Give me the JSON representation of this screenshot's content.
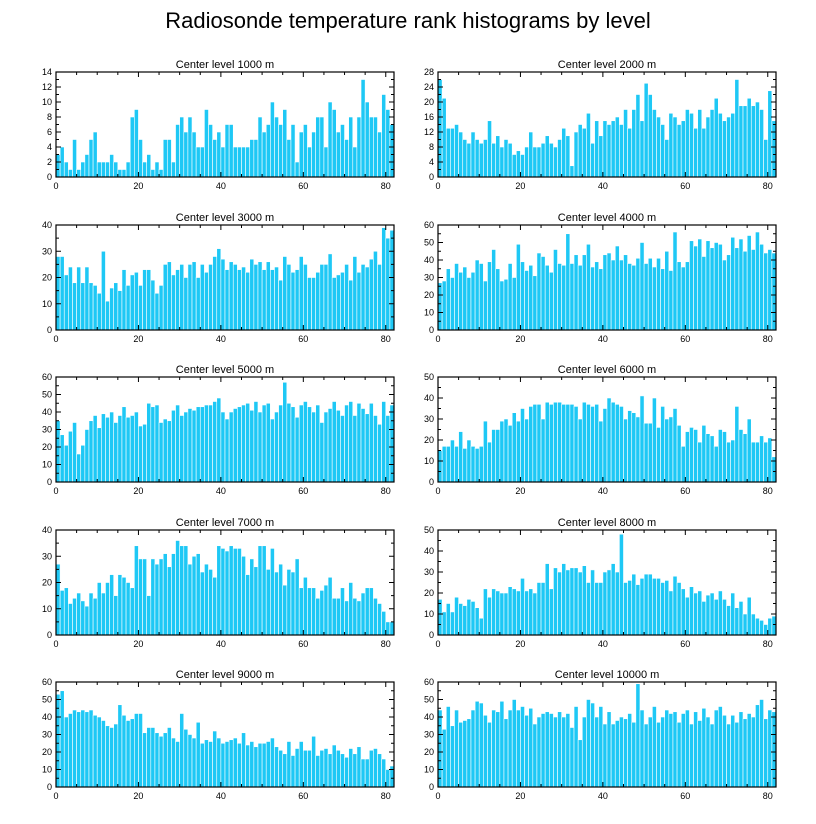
{
  "title": "Radiosonde temperature rank histograms by level",
  "colors": {
    "bar": "#1EC8F5",
    "bar_edge": "#ffffff",
    "frame": "#000000"
  },
  "chart_data": [
    {
      "type": "bar",
      "title": "Center level 1000 m",
      "xlim": [
        0,
        82
      ],
      "ylim": [
        0,
        14
      ],
      "xticks": [
        0,
        20,
        40,
        60,
        80
      ],
      "yticks": [
        0,
        2,
        4,
        6,
        8,
        10,
        12,
        14
      ],
      "values": [
        3,
        4,
        2,
        1,
        5,
        1,
        2,
        3,
        5,
        6,
        2,
        2,
        2,
        3,
        2,
        1,
        1,
        2,
        8,
        9,
        5,
        2,
        3,
        1,
        2,
        1,
        5,
        5,
        2,
        7,
        8,
        6,
        8,
        6,
        4,
        4,
        9,
        7,
        5,
        6,
        4,
        7,
        7,
        4,
        4,
        4,
        4,
        5,
        5,
        8,
        6,
        7,
        10,
        8,
        7,
        9,
        5,
        7,
        2,
        6,
        7,
        4,
        6,
        8,
        8,
        4,
        10,
        9,
        6,
        7,
        5,
        8,
        4,
        8,
        13,
        10,
        8,
        8,
        6,
        11,
        9,
        7
      ]
    },
    {
      "type": "bar",
      "title": "Center level 2000 m",
      "xlim": [
        0,
        82
      ],
      "ylim": [
        0,
        28
      ],
      "xticks": [
        0,
        20,
        40,
        60,
        80
      ],
      "yticks": [
        0,
        4,
        8,
        12,
        16,
        20,
        24,
        28
      ],
      "values": [
        26,
        21,
        13,
        13,
        14,
        12,
        10,
        9,
        12,
        10,
        9,
        10,
        15,
        9,
        11,
        8,
        10,
        9,
        6,
        7,
        6,
        8,
        12,
        8,
        8,
        9,
        11,
        9,
        8,
        10,
        13,
        11,
        3,
        12,
        14,
        13,
        17,
        9,
        15,
        11,
        15,
        14,
        15,
        16,
        14,
        18,
        13,
        18,
        22,
        15,
        25,
        22,
        18,
        16,
        14,
        10,
        17,
        16,
        14,
        15,
        18,
        17,
        13,
        18,
        13,
        16,
        18,
        21,
        17,
        15,
        16,
        17,
        26,
        19,
        19,
        21,
        19,
        20,
        18,
        10,
        23,
        15
      ]
    },
    {
      "type": "bar",
      "title": "Center level 3000 m",
      "xlim": [
        0,
        82
      ],
      "ylim": [
        0,
        40
      ],
      "xticks": [
        0,
        20,
        40,
        60,
        80
      ],
      "yticks": [
        0,
        10,
        20,
        30,
        40
      ],
      "values": [
        28,
        28,
        21,
        24,
        18,
        24,
        18,
        24,
        18,
        17,
        14,
        30,
        11,
        16,
        18,
        15,
        23,
        17,
        21,
        22,
        17,
        23,
        23,
        19,
        14,
        17,
        25,
        26,
        21,
        23,
        25,
        20,
        25,
        26,
        20,
        25,
        22,
        25,
        28,
        31,
        27,
        23,
        26,
        25,
        23,
        24,
        22,
        27,
        25,
        26,
        23,
        26,
        23,
        24,
        19,
        28,
        25,
        22,
        23,
        28,
        25,
        20,
        20,
        22,
        25,
        25,
        29,
        20,
        21,
        22,
        25,
        19,
        28,
        22,
        25,
        24,
        27,
        30,
        25,
        39,
        35,
        38
      ]
    },
    {
      "type": "bar",
      "title": "Center level 4000 m",
      "xlim": [
        0,
        82
      ],
      "ylim": [
        0,
        60
      ],
      "xticks": [
        0,
        20,
        40,
        60,
        80
      ],
      "yticks": [
        0,
        10,
        20,
        30,
        40,
        50,
        60
      ],
      "values": [
        27,
        28,
        35,
        30,
        38,
        33,
        36,
        30,
        33,
        40,
        38,
        28,
        39,
        46,
        35,
        28,
        29,
        38,
        30,
        49,
        39,
        34,
        37,
        31,
        44,
        42,
        37,
        33,
        46,
        38,
        37,
        55,
        38,
        43,
        37,
        43,
        49,
        36,
        39,
        35,
        43,
        44,
        40,
        48,
        40,
        43,
        38,
        37,
        41,
        50,
        38,
        41,
        36,
        41,
        35,
        45,
        34,
        56,
        39,
        36,
        39,
        51,
        48,
        52,
        42,
        51,
        47,
        50,
        49,
        40,
        43,
        53,
        47,
        52,
        45,
        54,
        46,
        56,
        49,
        44,
        46,
        44
      ]
    },
    {
      "type": "bar",
      "title": "Center level 5000 m",
      "xlim": [
        0,
        82
      ],
      "ylim": [
        0,
        60
      ],
      "xticks": [
        0,
        20,
        40,
        60,
        80
      ],
      "yticks": [
        0,
        10,
        20,
        30,
        40,
        50,
        60
      ],
      "values": [
        35,
        27,
        21,
        29,
        34,
        16,
        21,
        30,
        35,
        38,
        31,
        39,
        37,
        40,
        34,
        38,
        43,
        37,
        38,
        40,
        32,
        33,
        45,
        43,
        44,
        34,
        36,
        35,
        41,
        44,
        38,
        40,
        42,
        41,
        43,
        43,
        44,
        44,
        46,
        48,
        40,
        36,
        40,
        42,
        43,
        44,
        45,
        41,
        46,
        40,
        44,
        45,
        36,
        40,
        44,
        57,
        45,
        43,
        37,
        44,
        46,
        43,
        40,
        44,
        34,
        40,
        42,
        46,
        41,
        38,
        44,
        46,
        38,
        45,
        42,
        39,
        45,
        38,
        33,
        46,
        38,
        44
      ]
    },
    {
      "type": "bar",
      "title": "Center level 6000 m",
      "xlim": [
        0,
        82
      ],
      "ylim": [
        0,
        50
      ],
      "xticks": [
        0,
        20,
        40,
        60,
        80
      ],
      "yticks": [
        0,
        10,
        20,
        30,
        40,
        50
      ],
      "values": [
        15,
        17,
        17,
        20,
        17,
        24,
        16,
        20,
        17,
        16,
        17,
        29,
        19,
        25,
        25,
        29,
        30,
        27,
        33,
        29,
        35,
        30,
        36,
        37,
        37,
        30,
        38,
        37,
        38,
        38,
        37,
        37,
        37,
        36,
        30,
        38,
        37,
        36,
        37,
        29,
        35,
        40,
        38,
        37,
        36,
        30,
        34,
        33,
        31,
        41,
        28,
        28,
        40,
        26,
        36,
        30,
        31,
        35,
        27,
        17,
        24,
        26,
        25,
        19,
        27,
        23,
        22,
        17,
        25,
        24,
        19,
        20,
        36,
        25,
        23,
        30,
        19,
        19,
        22,
        19,
        21,
        12
      ]
    },
    {
      "type": "bar",
      "title": "Center level 7000 m",
      "xlim": [
        0,
        82
      ],
      "ylim": [
        0,
        40
      ],
      "xticks": [
        0,
        20,
        40,
        60,
        80
      ],
      "yticks": [
        0,
        10,
        20,
        30,
        40
      ],
      "values": [
        27,
        17,
        18,
        12,
        14,
        16,
        13,
        11,
        16,
        14,
        20,
        16,
        20,
        23,
        15,
        23,
        22,
        20,
        18,
        34,
        29,
        29,
        15,
        29,
        27,
        29,
        31,
        26,
        31,
        36,
        34,
        34,
        27,
        30,
        31,
        24,
        27,
        25,
        22,
        34,
        33,
        32,
        34,
        33,
        33,
        30,
        23,
        29,
        26,
        34,
        34,
        25,
        33,
        24,
        27,
        19,
        25,
        24,
        29,
        18,
        22,
        18,
        18,
        14,
        17,
        19,
        22,
        14,
        14,
        18,
        13,
        20,
        14,
        13,
        16,
        18,
        18,
        14,
        12,
        9,
        5,
        5
      ]
    },
    {
      "type": "bar",
      "title": "Center level 8000 m",
      "xlim": [
        0,
        82
      ],
      "ylim": [
        0,
        50
      ],
      "xticks": [
        0,
        20,
        40,
        60,
        80
      ],
      "yticks": [
        0,
        10,
        20,
        30,
        40,
        50
      ],
      "values": [
        17,
        11,
        15,
        11,
        18,
        15,
        14,
        17,
        16,
        13,
        8,
        22,
        18,
        22,
        21,
        20,
        20,
        23,
        22,
        21,
        27,
        21,
        22,
        20,
        25,
        25,
        34,
        22,
        32,
        30,
        34,
        31,
        32,
        32,
        30,
        33,
        25,
        31,
        25,
        25,
        30,
        31,
        34,
        30,
        48,
        25,
        26,
        29,
        24,
        27,
        29,
        29,
        27,
        27,
        25,
        26,
        21,
        28,
        25,
        22,
        18,
        23,
        20,
        21,
        16,
        19,
        20,
        17,
        21,
        17,
        14,
        20,
        13,
        16,
        10,
        18,
        10,
        8,
        7,
        5,
        8,
        9
      ]
    },
    {
      "type": "bar",
      "title": "Center level 9000 m",
      "xlim": [
        0,
        82
      ],
      "ylim": [
        0,
        60
      ],
      "xticks": [
        0,
        20,
        40,
        60,
        80
      ],
      "yticks": [
        0,
        10,
        20,
        30,
        40,
        50,
        60
      ],
      "values": [
        53,
        55,
        40,
        42,
        44,
        43,
        44,
        43,
        44,
        41,
        40,
        38,
        35,
        34,
        36,
        47,
        41,
        38,
        39,
        42,
        42,
        31,
        34,
        34,
        31,
        29,
        31,
        34,
        28,
        26,
        42,
        33,
        30,
        28,
        37,
        25,
        27,
        26,
        32,
        28,
        25,
        26,
        27,
        28,
        25,
        31,
        24,
        26,
        23,
        25,
        25,
        26,
        28,
        23,
        21,
        19,
        26,
        18,
        22,
        26,
        21,
        21,
        29,
        18,
        21,
        22,
        19,
        24,
        21,
        19,
        17,
        22,
        19,
        23,
        16,
        16,
        21,
        22,
        19,
        16,
        10,
        12
      ]
    },
    {
      "type": "bar",
      "title": "Center level 10000 m",
      "xlim": [
        0,
        82
      ],
      "ylim": [
        0,
        60
      ],
      "xticks": [
        0,
        20,
        40,
        60,
        80
      ],
      "yticks": [
        0,
        10,
        20,
        30,
        40,
        50,
        60
      ],
      "values": [
        44,
        33,
        46,
        35,
        44,
        37,
        38,
        39,
        44,
        49,
        48,
        41,
        37,
        44,
        43,
        49,
        39,
        44,
        50,
        44,
        46,
        41,
        45,
        36,
        40,
        42,
        43,
        42,
        40,
        43,
        40,
        42,
        34,
        46,
        27,
        40,
        50,
        48,
        40,
        46,
        36,
        43,
        36,
        38,
        40,
        39,
        42,
        37,
        59,
        44,
        36,
        40,
        46,
        37,
        40,
        44,
        42,
        43,
        37,
        42,
        44,
        36,
        43,
        38,
        45,
        40,
        36,
        44,
        46,
        41,
        36,
        41,
        37,
        43,
        39,
        42,
        40,
        47,
        50,
        39,
        44,
        43
      ]
    }
  ]
}
